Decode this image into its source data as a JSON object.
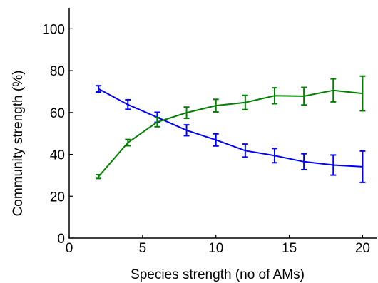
{
  "chart_data": {
    "type": "line",
    "title": "",
    "xlabel": "Species strength (no of AMs)",
    "ylabel": "Community strength (%)",
    "xlim": [
      0,
      21
    ],
    "ylim": [
      0,
      110
    ],
    "xticks": [
      0,
      5,
      10,
      15,
      20
    ],
    "yticks": [
      0,
      20,
      40,
      60,
      80,
      100
    ],
    "grid": false,
    "legend": "none",
    "x": [
      2,
      4,
      6,
      8,
      10,
      12,
      14,
      16,
      18,
      20
    ],
    "series": [
      {
        "color": "#0000ff",
        "values": [
          71.3,
          63.8,
          57.7,
          51.5,
          46.9,
          41.8,
          39.4,
          36.5,
          34.9,
          34.1
        ],
        "error": [
          1.5,
          2.3,
          2.4,
          2.6,
          2.9,
          3.1,
          3.4,
          3.8,
          4.8,
          7.5
        ]
      },
      {
        "color": "#008000",
        "values": [
          29.4,
          45.6,
          55.4,
          59.9,
          63.3,
          64.8,
          68.0,
          67.8,
          70.6,
          69.1
        ],
        "error": [
          0.9,
          1.5,
          2.2,
          2.7,
          3.0,
          3.4,
          3.8,
          4.2,
          5.5,
          8.3
        ]
      }
    ]
  }
}
